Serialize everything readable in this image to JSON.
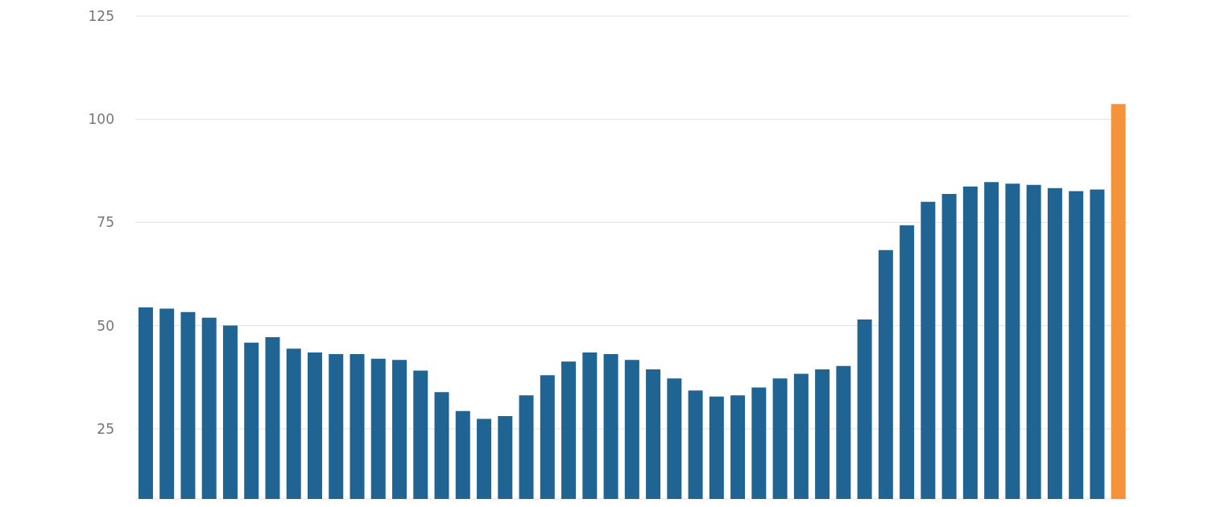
{
  "chart_data": {
    "type": "bar",
    "categories": [
      null,
      null,
      null,
      null,
      null,
      null,
      null,
      null,
      null,
      null,
      null,
      null,
      null,
      null,
      null,
      null,
      null,
      null,
      null,
      null,
      null,
      null,
      null,
      null,
      null,
      null,
      null,
      null,
      null,
      null,
      null,
      null,
      null,
      null,
      null,
      null,
      null,
      null,
      null,
      null,
      null,
      null,
      null,
      null,
      null,
      null,
      null
    ],
    "values": [
      54.4,
      54.1,
      53.3,
      51.9,
      50.0,
      45.9,
      47.2,
      44.4,
      43.5,
      43.1,
      43.1,
      42.0,
      41.7,
      39.1,
      33.9,
      29.3,
      27.4,
      28.1,
      33.1,
      38.0,
      41.3,
      43.5,
      43.1,
      41.7,
      39.4,
      37.2,
      34.3,
      32.8,
      33.1,
      35.0,
      37.2,
      38.3,
      39.4,
      40.2,
      51.5,
      68.3,
      74.3,
      80.0,
      81.9,
      83.7,
      84.8,
      84.4,
      84.1,
      83.3,
      82.6,
      83.0,
      103.7
    ],
    "colors": [
      "#1f6493",
      "#1f6493",
      "#1f6493",
      "#1f6493",
      "#1f6493",
      "#1f6493",
      "#1f6493",
      "#1f6493",
      "#1f6493",
      "#1f6493",
      "#1f6493",
      "#1f6493",
      "#1f6493",
      "#1f6493",
      "#1f6493",
      "#1f6493",
      "#1f6493",
      "#1f6493",
      "#1f6493",
      "#1f6493",
      "#1f6493",
      "#1f6493",
      "#1f6493",
      "#1f6493",
      "#1f6493",
      "#1f6493",
      "#1f6493",
      "#1f6493",
      "#1f6493",
      "#1f6493",
      "#1f6493",
      "#1f6493",
      "#1f6493",
      "#1f6493",
      "#1f6493",
      "#1f6493",
      "#1f6493",
      "#1f6493",
      "#1f6493",
      "#1f6493",
      "#1f6493",
      "#1f6493",
      "#1f6493",
      "#1f6493",
      "#1f6493",
      "#1f6493",
      "#f4933a"
    ],
    "ylim": [
      8,
      125
    ],
    "yticks": [
      25,
      50,
      75,
      100,
      125
    ],
    "grid": "y",
    "tick_labels": "y"
  }
}
